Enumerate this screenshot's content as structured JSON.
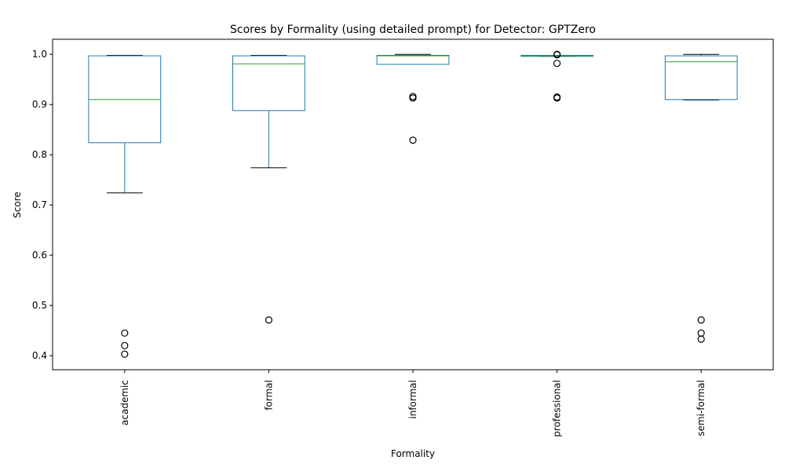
{
  "chart_data": {
    "type": "box",
    "title": "Scores by Formality (using detailed prompt) for Detector: GPTZero",
    "xlabel": "Formality",
    "ylabel": "Score",
    "ylim": [
      0.372,
      1.03
    ],
    "yticks": [
      0.4,
      0.5,
      0.6,
      0.7,
      0.8,
      0.9,
      1.0
    ],
    "ytick_labels": [
      "0.4",
      "0.5",
      "0.6",
      "0.7",
      "0.8",
      "0.9",
      "1.0"
    ],
    "categories": [
      "academic",
      "formal",
      "informal",
      "professional",
      "semi-formal"
    ],
    "boxes": [
      {
        "q1": 0.824,
        "median": 0.91,
        "q3": 0.997,
        "whisker_low": 0.724,
        "whisker_high": 0.998,
        "outliers": [
          0.445,
          0.42,
          0.403
        ]
      },
      {
        "q1": 0.888,
        "median": 0.981,
        "q3": 0.997,
        "whisker_low": 0.774,
        "whisker_high": 0.998,
        "outliers": [
          0.471
        ]
      },
      {
        "q1": 0.98,
        "median": 0.997,
        "q3": 0.998,
        "whisker_low": 0.98,
        "whisker_high": 1.0,
        "outliers": [
          0.916,
          0.913,
          0.829
        ]
      },
      {
        "q1": 0.996,
        "median": 0.997,
        "q3": 0.998,
        "whisker_low": 0.996,
        "whisker_high": 0.998,
        "outliers": [
          1.0,
          0.999,
          0.982,
          0.915,
          0.913
        ]
      },
      {
        "q1": 0.91,
        "median": 0.985,
        "q3": 0.997,
        "whisker_low": 0.909,
        "whisker_high": 1.0,
        "outliers": [
          0.471,
          0.445,
          0.433
        ]
      }
    ],
    "colors": {
      "box": "#1f77b4",
      "median": "#2ca02c",
      "whisker_cap": "#000000",
      "outlier": "#000000"
    },
    "grid": false,
    "legend": "none"
  }
}
